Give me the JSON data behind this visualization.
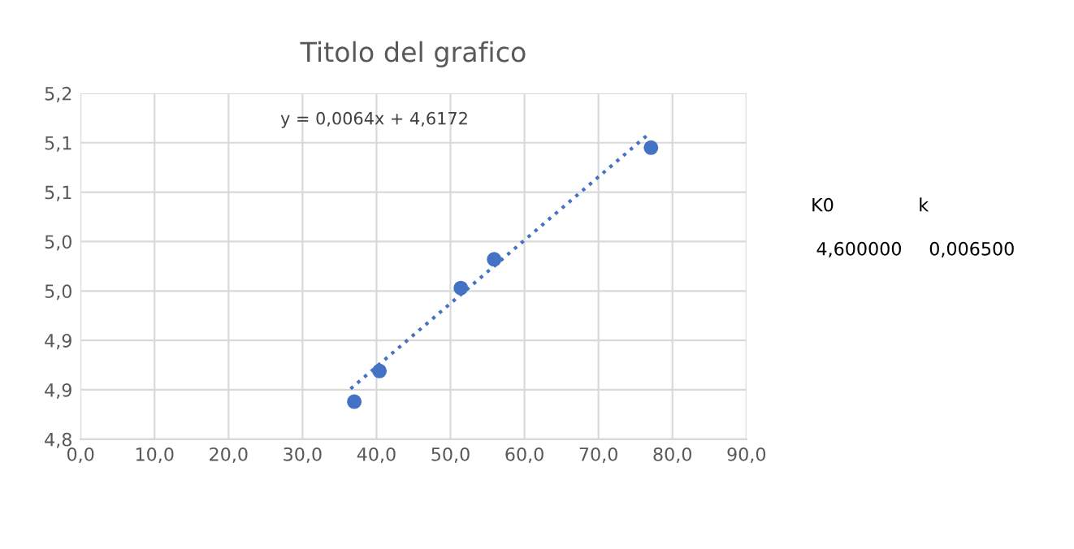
{
  "chart_data": {
    "type": "scatter",
    "title": "Titolo del grafico",
    "series": [
      {
        "color": "#4472c4",
        "marker": "circle",
        "x": [
          37.0,
          40.4,
          51.4,
          55.9,
          77.1
        ],
        "values": [
          4.838,
          4.869,
          4.953,
          4.982,
          5.095
        ]
      },
      {
        "type": "line",
        "color": "#4472c4",
        "line_style": "dotted",
        "marker": "none",
        "x": [
          36.5,
          76.5
        ],
        "values": [
          4.851,
          5.107
        ]
      }
    ],
    "xlim": [
      0,
      90
    ],
    "xticks": [
      {
        "value": 0,
        "label": "0,0"
      },
      {
        "value": 10,
        "label": "10,0"
      },
      {
        "value": 20,
        "label": "20,0"
      },
      {
        "value": 30,
        "label": "30,0"
      },
      {
        "value": 40,
        "label": "40,0"
      },
      {
        "value": 50,
        "label": "50,0"
      },
      {
        "value": 60,
        "label": "60,0"
      },
      {
        "value": 70,
        "label": "70,0"
      },
      {
        "value": 80,
        "label": "80,0"
      },
      {
        "value": 90,
        "label": "90,0"
      }
    ],
    "ylim": [
      4.8,
      5.15
    ],
    "yticks": [
      {
        "value": 4.8,
        "label": "4,8"
      },
      {
        "value": 4.85,
        "label": "4,9"
      },
      {
        "value": 4.9,
        "label": "4,9"
      },
      {
        "value": 4.95,
        "label": "5,0"
      },
      {
        "value": 5.0,
        "label": "5,0"
      },
      {
        "value": 5.05,
        "label": "5,1"
      },
      {
        "value": 5.1,
        "label": "5,1"
      },
      {
        "value": 5.15,
        "label": "5,2"
      }
    ],
    "grid": true,
    "annotations": [
      "y = 0,0064x + 4,6172",
      "K0",
      "k",
      "4,600000",
      "0,006500"
    ]
  }
}
